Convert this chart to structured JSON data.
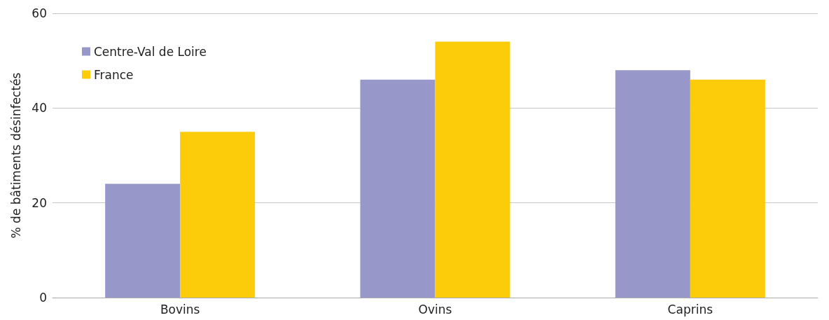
{
  "chart_data": {
    "type": "bar",
    "ylabel": "% de bâtiments désinfectés",
    "categories": [
      "Bovins",
      "Ovins",
      "Caprins"
    ],
    "series": [
      {
        "name": "Centre-Val de Loire",
        "color": "#9797c9",
        "values": [
          24,
          46,
          48
        ]
      },
      {
        "name": "France",
        "color": "#fccc0a",
        "values": [
          35,
          54,
          46
        ]
      }
    ],
    "ylim": [
      0,
      60
    ],
    "yticks": [
      0,
      20,
      40,
      60
    ],
    "grid": "y",
    "legend": "top left"
  }
}
